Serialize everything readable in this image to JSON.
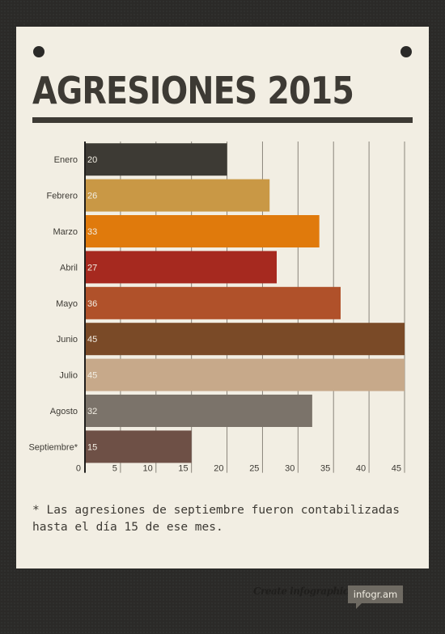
{
  "title": "AGRESIONES 2015",
  "footnote": "* Las agresiones de septiembre fueron contabilizadas hasta el día 15 de ese mes.",
  "credit": {
    "text": "Create infographics",
    "badge": "infogr.am"
  },
  "chart_data": {
    "type": "bar",
    "orientation": "horizontal",
    "categories": [
      "Enero",
      "Febrero",
      "Marzo",
      "Abril",
      "Mayo",
      "Junio",
      "Julio",
      "Agosto",
      "Septiembre*"
    ],
    "values": [
      20,
      26,
      33,
      27,
      36,
      45,
      45,
      32,
      15
    ],
    "colors": [
      "#3d3a34",
      "#c99845",
      "#e07a0c",
      "#a6291f",
      "#b0512a",
      "#7a4a27",
      "#c7a98a",
      "#7b736a",
      "#6e5046"
    ],
    "xlim": [
      0,
      45
    ],
    "xticks": [
      0,
      5,
      10,
      15,
      20,
      25,
      30,
      35,
      40,
      45
    ],
    "grid": true,
    "data_labels": true,
    "title": "",
    "xlabel": "",
    "ylabel": ""
  }
}
